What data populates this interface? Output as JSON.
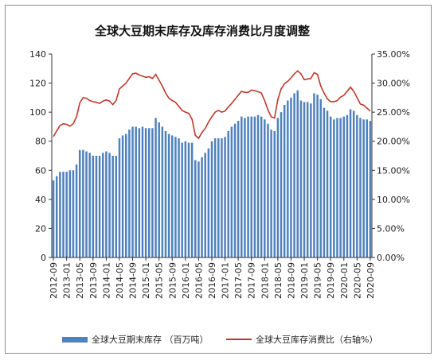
{
  "chart_data": {
    "type": "bar+line",
    "title": "全球大豆期末库存及库存消费比月度调整",
    "x_tick_labels": [
      "2012-09",
      "2013-01",
      "2013-05",
      "2013-09",
      "2014-01",
      "2014-05",
      "2014-09",
      "2015-01",
      "2015-05",
      "2015-09",
      "2016-01",
      "2016-05",
      "2016-09",
      "2017-01",
      "2017-05",
      "2017-09",
      "2018-01",
      "2018-05",
      "2018-09",
      "2019-01",
      "2019-05",
      "2019-09",
      "2020-01",
      "2020-05",
      "2020-09"
    ],
    "y_left": {
      "min": 0,
      "max": 140,
      "step": 20,
      "tick_labels": [
        "0",
        "20",
        "40",
        "60",
        "80",
        "100",
        "120",
        "140"
      ]
    },
    "y_right": {
      "min": 0,
      "max": 35,
      "step": 5,
      "tick_labels": [
        "0.00%",
        "5.00%",
        "10.00%",
        "15.00%",
        "20.00%",
        "25.00%",
        "30.00%",
        "35.00%"
      ]
    },
    "legend_position": "bottom",
    "series": [
      {
        "name": "全球大豆期末库存 （百万吨）",
        "type": "bar",
        "axis": "left",
        "color": "#4f81bd",
        "values": [
          53,
          56,
          59,
          59,
          59,
          60,
          60,
          64,
          74,
          74,
          73,
          72,
          70,
          70,
          70,
          72,
          73,
          72,
          70,
          70,
          82,
          84,
          85,
          88,
          90,
          90,
          89,
          90,
          89,
          89,
          89,
          96,
          93,
          90,
          87,
          85,
          84,
          83,
          82,
          79,
          80,
          79,
          79,
          67,
          66,
          69,
          72,
          75,
          80,
          82,
          82,
          82,
          83,
          87,
          90,
          92,
          94,
          97,
          96,
          97,
          97,
          97,
          98,
          97,
          95,
          92,
          88,
          87,
          96,
          100,
          105,
          108,
          110,
          113,
          115,
          108,
          107,
          107,
          106,
          113,
          112,
          109,
          103,
          101,
          97,
          95,
          96,
          96,
          97,
          98,
          102,
          101,
          98,
          96,
          95,
          95,
          94
        ]
      },
      {
        "name": "全球大豆库存消费比（右轴%）",
        "type": "line",
        "axis": "right",
        "color": "#c0392b",
        "values": [
          20.8,
          21.8,
          22.7,
          23.0,
          22.9,
          22.6,
          23.0,
          24.2,
          26.6,
          27.5,
          27.4,
          27.0,
          26.8,
          26.7,
          26.5,
          26.9,
          27.1,
          26.9,
          26.3,
          27.0,
          29.0,
          29.5,
          30.0,
          30.8,
          31.6,
          31.7,
          31.4,
          31.2,
          31.0,
          31.1,
          30.8,
          31.5,
          30.5,
          29.5,
          28.3,
          27.4,
          27.0,
          26.7,
          26.0,
          25.3,
          25.0,
          24.8,
          23.8,
          21.0,
          20.5,
          21.5,
          22.2,
          23.3,
          24.2,
          25.0,
          25.3,
          25.0,
          25.2,
          25.9,
          26.5,
          27.2,
          27.9,
          28.6,
          28.4,
          28.4,
          28.8,
          28.7,
          28.5,
          28.3,
          27.0,
          25.4,
          24.2,
          24.0,
          27.2,
          29.0,
          29.9,
          30.3,
          30.9,
          31.6,
          32.1,
          31.6,
          30.6,
          30.7,
          30.8,
          31.8,
          31.5,
          29.5,
          28.3,
          27.3,
          26.8,
          26.8,
          27.0,
          27.6,
          27.9,
          28.6,
          29.3,
          28.6,
          27.5,
          26.4,
          26.2,
          25.7,
          25.2
        ]
      }
    ]
  }
}
